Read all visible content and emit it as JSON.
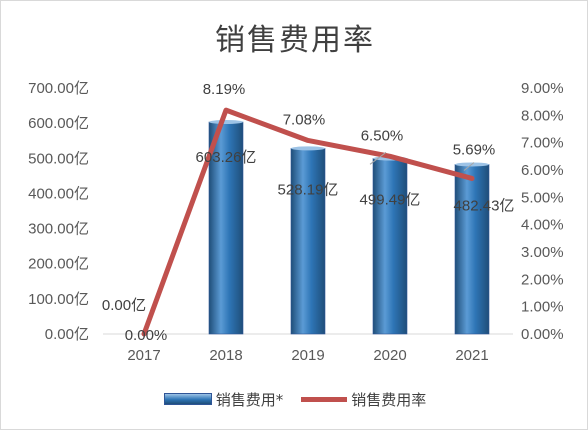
{
  "chart_data": {
    "type": "bar",
    "title": "销售费用率",
    "categories": [
      "2017",
      "2018",
      "2019",
      "2020",
      "2021"
    ],
    "series": [
      {
        "name": "销售费用*",
        "type": "bar",
        "axis": "left",
        "values": [
          0.0,
          603.26,
          528.19,
          499.49,
          482.43
        ],
        "labels": [
          "0.00亿",
          "603.26亿",
          "528.19亿",
          "499.49亿",
          "482.43亿"
        ],
        "color": "#2e75b6"
      },
      {
        "name": "销售费用率",
        "type": "line",
        "axis": "right",
        "values": [
          0.0,
          8.19,
          7.08,
          6.5,
          5.69
        ],
        "labels": [
          "0.00%",
          "8.19%",
          "7.08%",
          "6.50%",
          "5.69%"
        ],
        "color": "#c0504d"
      }
    ],
    "y_left": {
      "ylim": [
        0,
        700
      ],
      "ticks": [
        "0.00亿",
        "100.00亿",
        "200.00亿",
        "300.00亿",
        "400.00亿",
        "500.00亿",
        "600.00亿",
        "700.00亿"
      ]
    },
    "y_right": {
      "ylim": [
        0,
        9
      ],
      "ticks": [
        "0.00%",
        "1.00%",
        "2.00%",
        "3.00%",
        "4.00%",
        "5.00%",
        "6.00%",
        "7.00%",
        "8.00%",
        "9.00%"
      ]
    },
    "grid": false,
    "legend_position": "bottom"
  }
}
